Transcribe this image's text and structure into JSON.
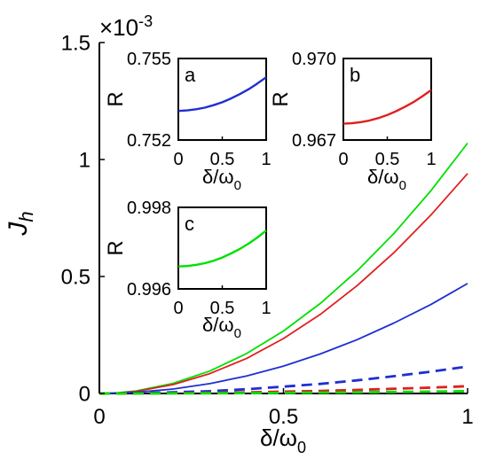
{
  "chart_data": [
    {
      "id": "main",
      "type": "line",
      "xlabel": "δ/ω",
      "xlabel_sub": "0",
      "ylabel": "J",
      "ylabel_sub": "h",
      "exponent_label": "×10",
      "exponent_power": "-3",
      "xlim": [
        0,
        1
      ],
      "ylim": [
        0,
        1.5
      ],
      "xticks": [
        0,
        0.5,
        1
      ],
      "xtick_labels": [
        "0",
        "0.5",
        "1"
      ],
      "yticks": [
        0,
        0.5,
        1,
        1.5
      ],
      "ytick_labels": [
        "0",
        "0.5",
        "1",
        "1.5"
      ],
      "grid": false,
      "series": [
        {
          "color": "#00e000",
          "style": "solid",
          "x": [
            0,
            0.05,
            0.1,
            0.2,
            0.3,
            0.4,
            0.5,
            0.6,
            0.7,
            0.8,
            0.9,
            1.0
          ],
          "values": [
            0,
            0.003,
            0.011,
            0.043,
            0.096,
            0.171,
            0.267,
            0.385,
            0.524,
            0.684,
            0.866,
            1.07
          ]
        },
        {
          "color": "#e02020",
          "style": "solid",
          "x": [
            0,
            0.05,
            0.1,
            0.2,
            0.3,
            0.4,
            0.5,
            0.6,
            0.7,
            0.8,
            0.9,
            1.0
          ],
          "values": [
            0,
            0.002,
            0.009,
            0.038,
            0.085,
            0.15,
            0.235,
            0.338,
            0.461,
            0.602,
            0.762,
            0.94
          ]
        },
        {
          "color": "#1f2fd0",
          "style": "solid",
          "x": [
            0,
            0.05,
            0.1,
            0.2,
            0.3,
            0.4,
            0.5,
            0.6,
            0.7,
            0.8,
            0.9,
            1.0
          ],
          "values": [
            0,
            0.001,
            0.005,
            0.019,
            0.042,
            0.075,
            0.117,
            0.169,
            0.23,
            0.301,
            0.38,
            0.47
          ]
        },
        {
          "color": "#1f2fd0",
          "style": "dashed",
          "x": [
            0,
            0.1,
            0.2,
            0.3,
            0.4,
            0.5,
            0.6,
            0.7,
            0.8,
            0.9,
            1.0
          ],
          "values": [
            0,
            0.001,
            0.005,
            0.01,
            0.018,
            0.029,
            0.041,
            0.056,
            0.074,
            0.093,
            0.115
          ]
        },
        {
          "color": "#e02020",
          "style": "dashed",
          "x": [
            0,
            0.1,
            0.2,
            0.3,
            0.4,
            0.5,
            0.6,
            0.7,
            0.8,
            0.9,
            1.0
          ],
          "values": [
            0,
            0.0003,
            0.001,
            0.003,
            0.005,
            0.008,
            0.011,
            0.015,
            0.02,
            0.025,
            0.031
          ]
        },
        {
          "color": "#00e000",
          "style": "dashed",
          "x": [
            0,
            0.1,
            0.2,
            0.3,
            0.4,
            0.5,
            0.6,
            0.7,
            0.8,
            0.9,
            1.0
          ],
          "values": [
            0,
            0.0001,
            0.0004,
            0.0009,
            0.0016,
            0.0025,
            0.0036,
            0.0049,
            0.0064,
            0.0081,
            0.01
          ]
        }
      ]
    },
    {
      "id": "inset-a",
      "type": "line",
      "panel_label": "a",
      "xlabel": "δ/ω",
      "xlabel_sub": "0",
      "ylabel": "R",
      "xlim": [
        0,
        1
      ],
      "ylim": [
        0.752,
        0.755
      ],
      "xticks": [
        0,
        0.5,
        1
      ],
      "xtick_labels": [
        "0",
        "0.5",
        "1"
      ],
      "yticks": [
        0.752,
        0.755
      ],
      "ytick_labels": [
        "0.752",
        "0.755"
      ],
      "series": [
        {
          "color": "#1f2fd0",
          "style": "solid",
          "x": [
            0,
            0.1,
            0.2,
            0.3,
            0.4,
            0.5,
            0.6,
            0.7,
            0.8,
            0.9,
            1.0
          ],
          "values": [
            0.75307,
            0.75309,
            0.75313,
            0.75319,
            0.75328,
            0.75339,
            0.75353,
            0.75369,
            0.75387,
            0.75408,
            0.75431
          ]
        }
      ]
    },
    {
      "id": "inset-b",
      "type": "line",
      "panel_label": "b",
      "xlabel": "δ/ω",
      "xlabel_sub": "0",
      "ylabel": "R",
      "xlim": [
        0,
        1
      ],
      "ylim": [
        0.967,
        0.97
      ],
      "xticks": [
        0,
        0.5,
        1
      ],
      "xtick_labels": [
        "0",
        "0.5",
        "1"
      ],
      "yticks": [
        0.967,
        0.97
      ],
      "ytick_labels": [
        "0.967",
        "0.970"
      ],
      "series": [
        {
          "color": "#e02020",
          "style": "solid",
          "x": [
            0,
            0.1,
            0.2,
            0.3,
            0.4,
            0.5,
            0.6,
            0.7,
            0.8,
            0.9,
            1.0
          ],
          "values": [
            0.9676,
            0.96762,
            0.96766,
            0.96772,
            0.96781,
            0.96792,
            0.96806,
            0.96822,
            0.9684,
            0.96861,
            0.96884
          ]
        }
      ]
    },
    {
      "id": "inset-c",
      "type": "line",
      "panel_label": "c",
      "xlabel": "δ/ω",
      "xlabel_sub": "0",
      "ylabel": "R",
      "xlim": [
        0,
        1
      ],
      "ylim": [
        0.996,
        0.998
      ],
      "xticks": [
        0,
        0.5,
        1
      ],
      "xtick_labels": [
        "0",
        "0.5",
        "1"
      ],
      "yticks": [
        0.996,
        0.998
      ],
      "ytick_labels": [
        "0.996",
        "0.998"
      ],
      "series": [
        {
          "color": "#00e000",
          "style": "solid",
          "x": [
            0,
            0.1,
            0.2,
            0.3,
            0.4,
            0.5,
            0.6,
            0.7,
            0.8,
            0.9,
            1.0
          ],
          "values": [
            0.99655,
            0.99656,
            0.99659,
            0.99663,
            0.99669,
            0.99677,
            0.99687,
            0.99698,
            0.99711,
            0.99726,
            0.99743
          ]
        }
      ]
    }
  ]
}
